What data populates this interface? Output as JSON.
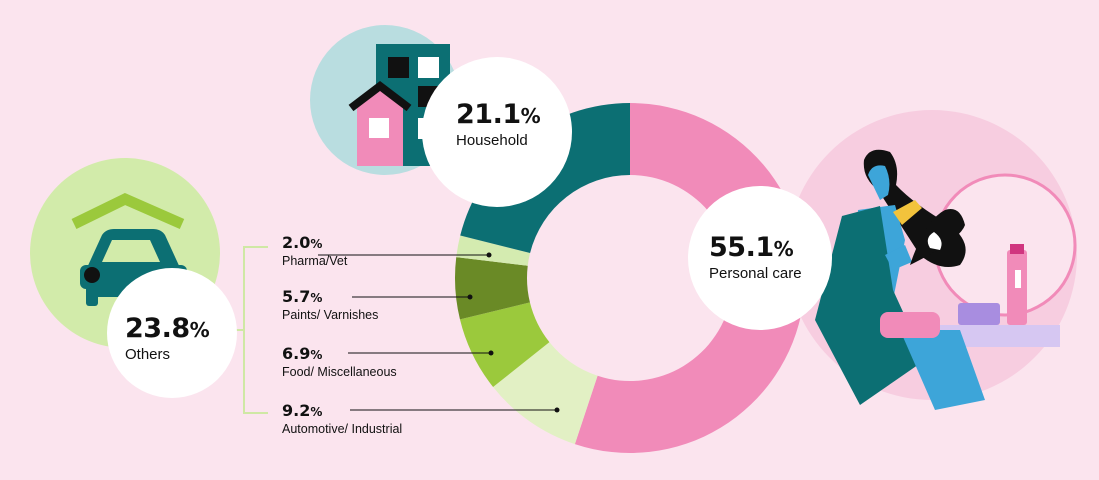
{
  "chart_data": {
    "type": "pie",
    "style": "donut",
    "segments": [
      {
        "label": "Personal care",
        "value": 55.1,
        "display": "55.1",
        "color": "#f18bb9"
      },
      {
        "label": "Automotive/ Industrial",
        "value": 9.2,
        "display": "9.2",
        "color": "#e2f0c4"
      },
      {
        "label": "Food/ Miscellaneous",
        "value": 6.9,
        "display": "6.9",
        "color": "#9bc93c"
      },
      {
        "label": "Paints/ Varnishes",
        "value": 5.7,
        "display": "5.7",
        "color": "#6a8a26"
      },
      {
        "label": "Pharma/Vet",
        "value": 2.0,
        "display": "2.0",
        "color": "#d4ebb0"
      },
      {
        "label": "Household",
        "value": 21.1,
        "display": "21.1",
        "color": "#0c6f73"
      }
    ],
    "groups": [
      {
        "label": "Others",
        "value": 23.8,
        "display": "23.8"
      }
    ],
    "unit": "%"
  },
  "colors": {
    "background": "#fbe4ee",
    "teal": "#0c6f73",
    "household_circle": "#b9dde0",
    "others_circle": "#d2ebaa",
    "personal_circle": "#f7cde0",
    "bracket": "#cfe8a4"
  },
  "icons": [
    "buildings-icon",
    "car-garage-icon",
    "woman-hairbrush-icon"
  ]
}
